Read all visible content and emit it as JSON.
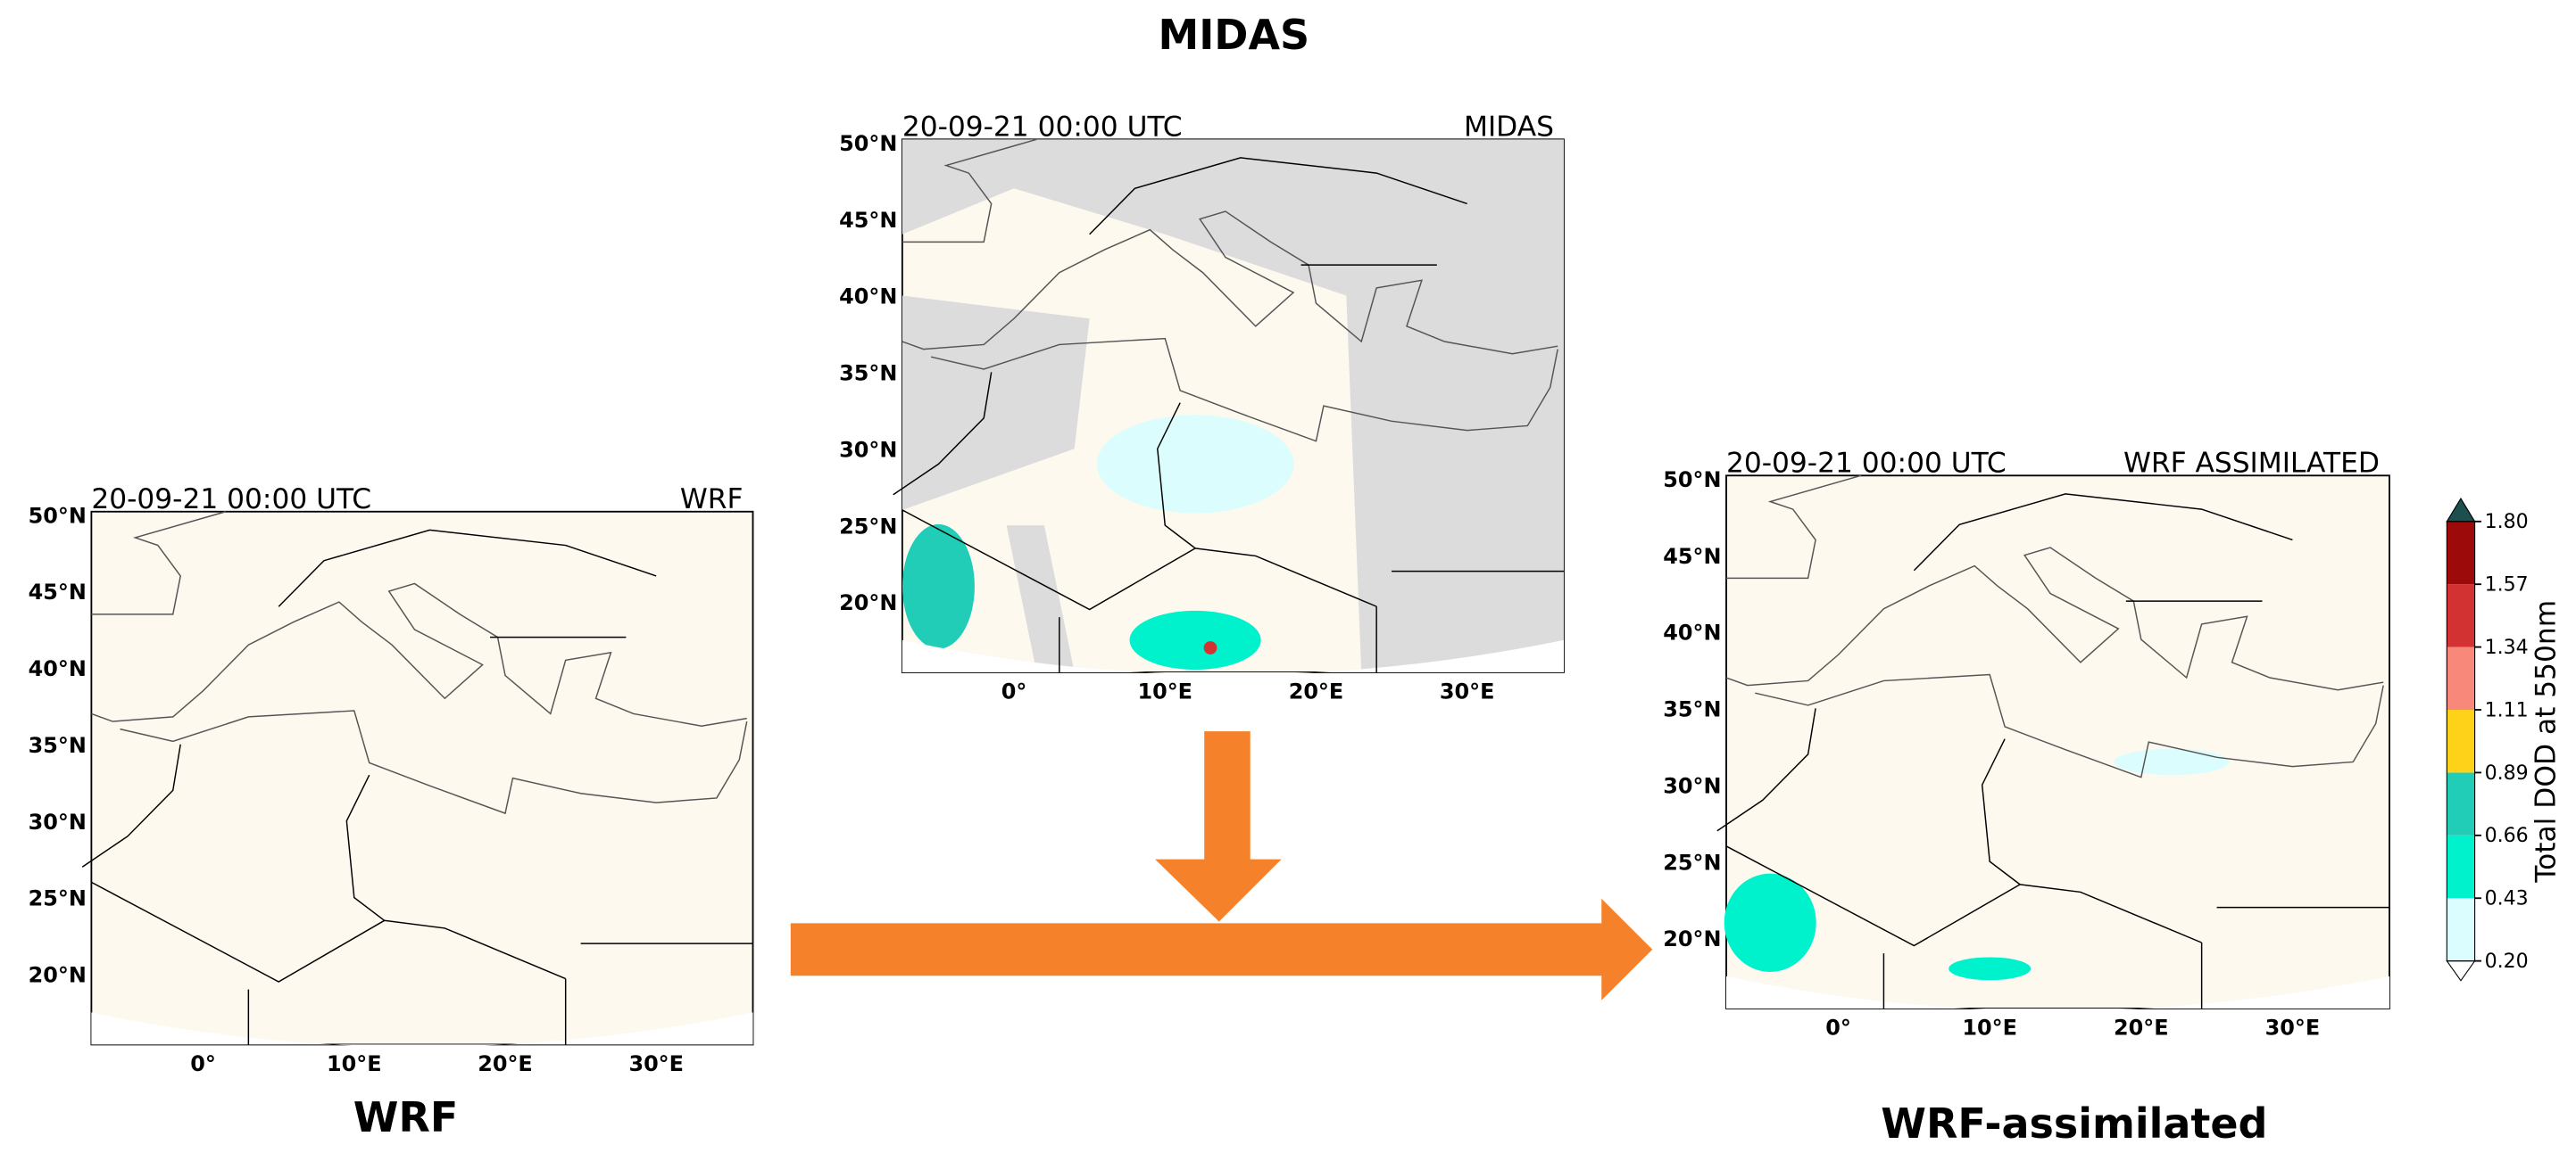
{
  "figure_title": "MIDAS",
  "maps": [
    {
      "header_left": "20-09-21 00:00 UTC",
      "header_right": "WRF",
      "caption": "WRF",
      "lat_labels": [
        "50°N",
        "45°N",
        "40°N",
        "35°N",
        "30°N",
        "25°N",
        "20°N"
      ],
      "lon_labels": [
        "0°",
        "10°E",
        "20°E",
        "30°E"
      ]
    },
    {
      "header_left": "20-09-21 00:00 UTC",
      "header_right": "MIDAS",
      "lat_labels": [
        "50°N",
        "45°N",
        "40°N",
        "35°N",
        "30°N",
        "25°N",
        "20°N"
      ],
      "lon_labels": [
        "0°",
        "10°E",
        "20°E",
        "30°E"
      ]
    },
    {
      "header_left": "20-09-21 00:00 UTC",
      "header_right": "WRF ASSIMILATED",
      "caption": "WRF-assimilated",
      "lat_labels": [
        "50°N",
        "45°N",
        "40°N",
        "35°N",
        "30°N",
        "25°N",
        "20°N"
      ],
      "lon_labels": [
        "0°",
        "10°E",
        "20°E",
        "30°E"
      ]
    }
  ],
  "colorbar": {
    "label": "Total DOD at 550nm",
    "ticks": [
      "0.20",
      "0.43",
      "0.66",
      "0.89",
      "1.11",
      "1.34",
      "1.57",
      "1.80"
    ],
    "colors": [
      "#dcfdfd",
      "#00f2cc",
      "#22cdb8",
      "#ffd21a",
      "#f8897a",
      "#d23232",
      "#9c0a0a"
    ]
  }
}
